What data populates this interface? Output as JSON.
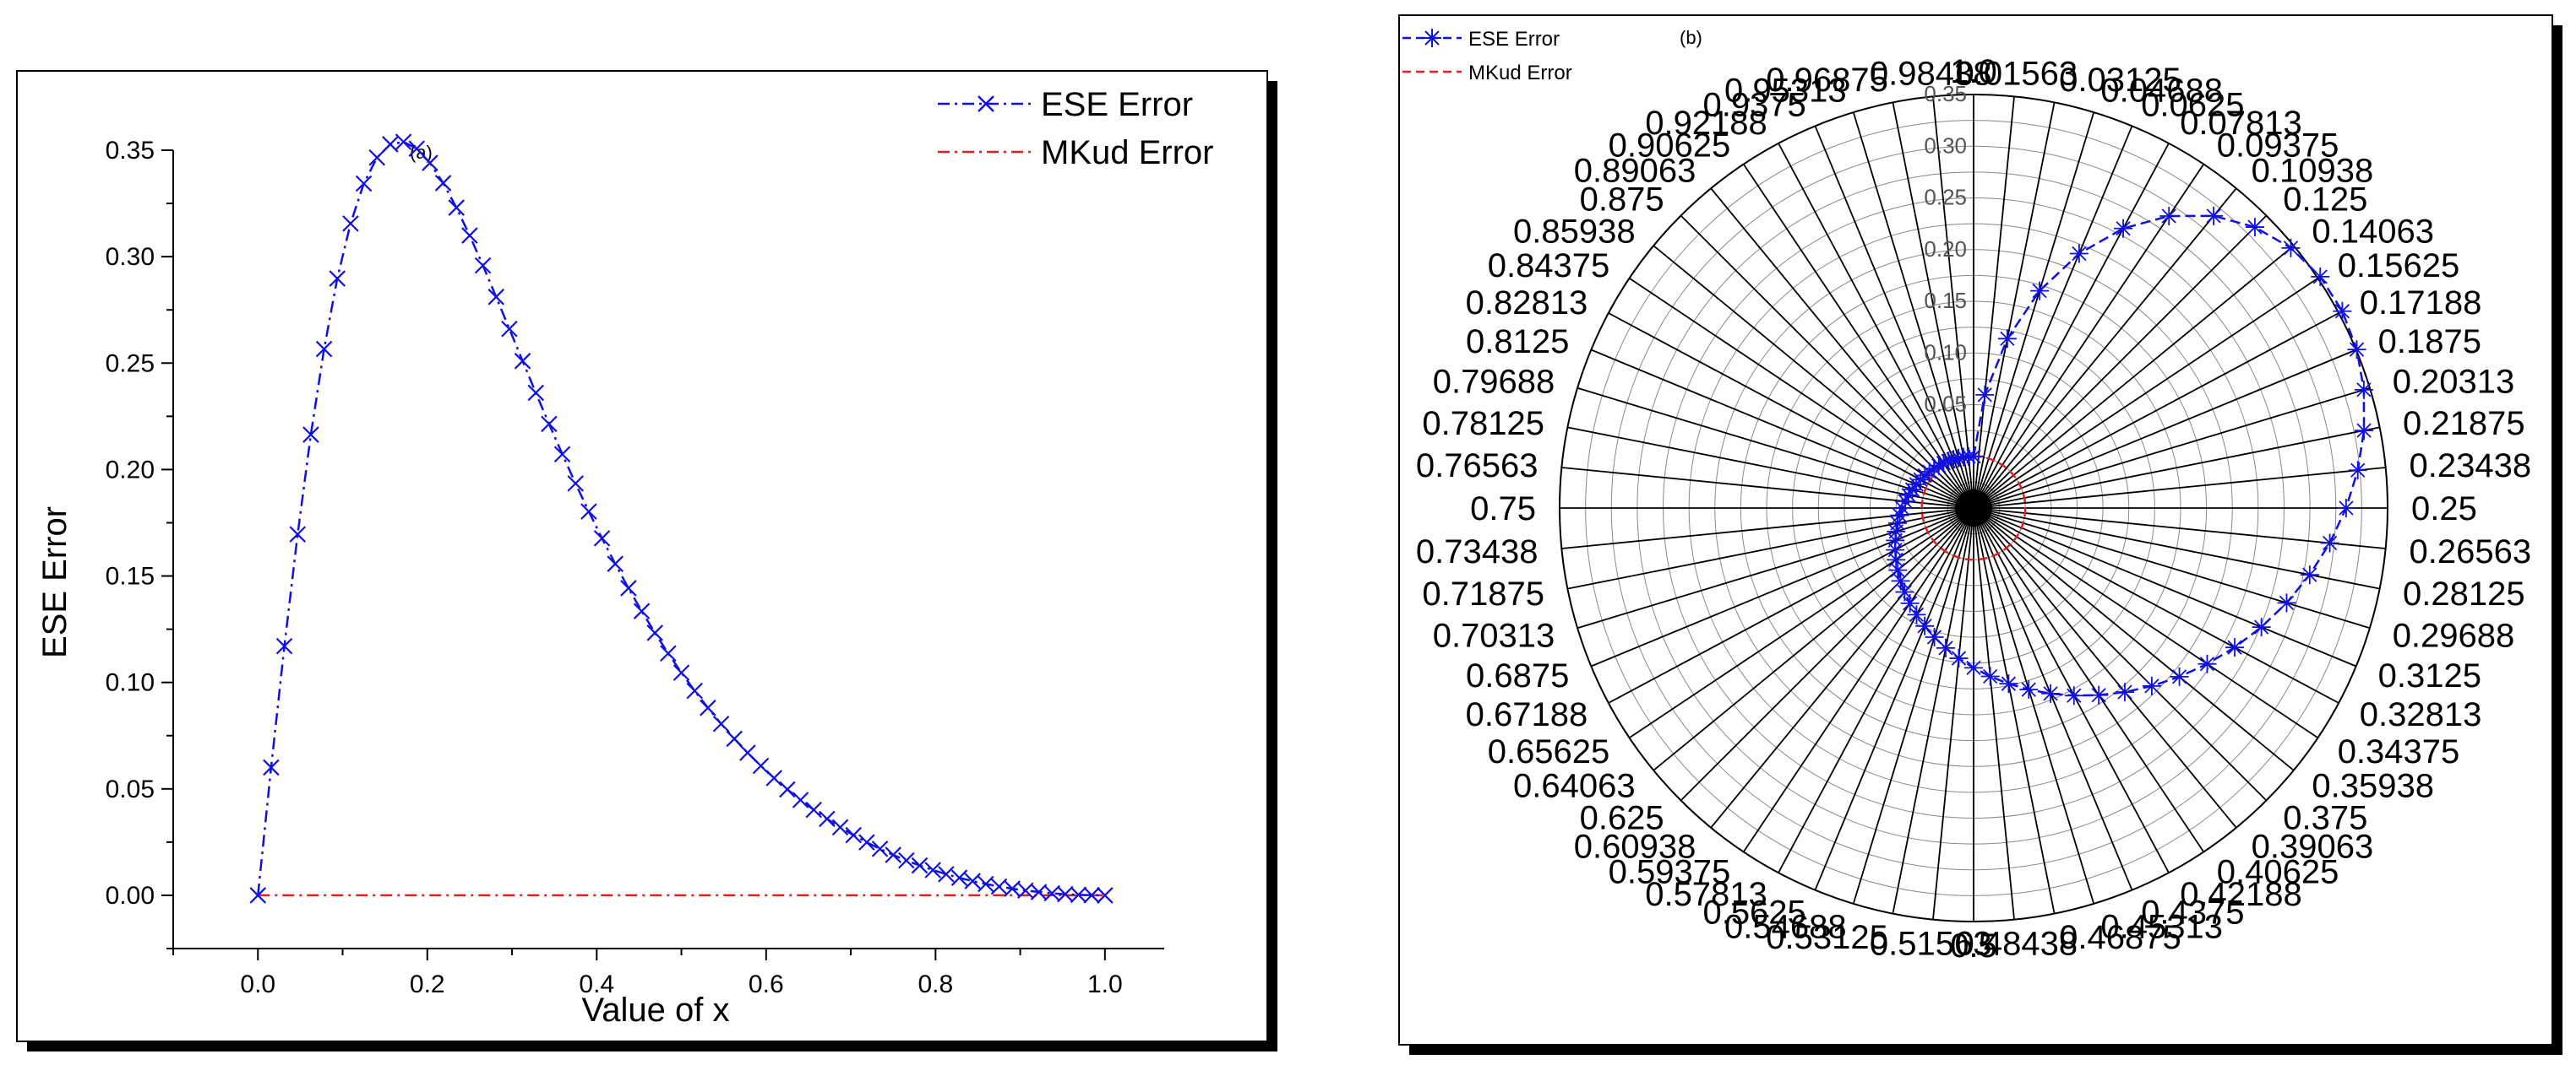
{
  "chart_data": [
    {
      "type": "line",
      "panel_label": "(a)",
      "xlabel": "Value of x",
      "ylabel": "ESE Error",
      "xlim": [
        -0.1,
        1.07
      ],
      "ylim": [
        -0.025,
        0.35
      ],
      "xticks": [
        "0.0",
        "0.2",
        "0.4",
        "0.6",
        "0.8",
        "1.0"
      ],
      "yticks": [
        "0.00",
        "0.05",
        "0.10",
        "0.15",
        "0.20",
        "0.25",
        "0.30",
        "0.35"
      ],
      "legend": [
        "ESE Error",
        "MKud Error"
      ],
      "series": [
        {
          "name": "ESE Error",
          "color": "#1010e0",
          "marker": "x",
          "style": "dash-dot",
          "fn": "3.4*x*(1-x)^2/(0.52+0.35*(1-x)^3+14*x^2)"
        },
        {
          "name": "MKud Error",
          "color": "#e02020",
          "style": "dash-dot",
          "values": "0 for all x"
        }
      ]
    },
    {
      "type": "polar",
      "panel_label": "(b)",
      "legend": [
        "ESE Error",
        "MKud Error"
      ],
      "radial_ticks": [
        "0.05",
        "0.10",
        "0.15",
        "0.20",
        "0.25",
        "0.30",
        "0.35"
      ],
      "radial_lim": [
        -0.05,
        0.35
      ],
      "angle_labels": [
        "0.01563",
        "0.03125",
        "0.04688",
        "0.0625",
        "0.07813",
        "0.09375",
        "0.10938",
        "0.125",
        "0.14063",
        "0.15625",
        "0.17188",
        "0.1875",
        "0.20313",
        "0.21875",
        "0.23438",
        "0.25",
        "0.26563",
        "0.28125",
        "0.29688",
        "0.3125",
        "0.32813",
        "0.34375",
        "0.35938",
        "0.375",
        "0.39063",
        "0.40625",
        "0.42188",
        "0.4375",
        "0.45313",
        "0.46875",
        "0.48438",
        "0.5",
        "0.51563",
        "0.53125",
        "0.54688",
        "0.5625",
        "0.57813",
        "0.59375",
        "0.60938",
        "0.625",
        "0.64063",
        "0.65625",
        "0.67188",
        "0.6875",
        "0.70313",
        "0.71875",
        "0.73438",
        "0.75",
        "0.76563",
        "0.78125",
        "0.79688",
        "0.8125",
        "0.82813",
        "0.84375",
        "0.85938",
        "0.875",
        "0.89063",
        "0.90625",
        "0.92188",
        "0.9375",
        "0.95313",
        "0.96875",
        "0.98438",
        "1.0"
      ],
      "series": [
        {
          "name": "ESE Error",
          "color": "#1010e0",
          "marker": "*",
          "style": "dash"
        },
        {
          "name": "MKud Error",
          "color": "#e02020",
          "style": "dash"
        }
      ]
    }
  ]
}
